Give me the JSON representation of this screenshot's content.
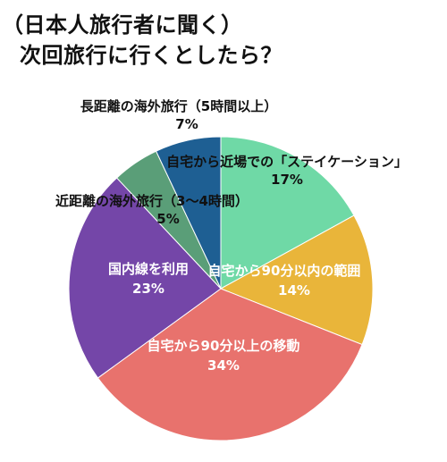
{
  "title_lines": [
    "（日本人旅行者に聞く）",
    "次回旅行に行くとしたら？"
  ],
  "chart_data": {
    "type": "pie",
    "start_angle_deg": 0,
    "direction": "clockwise",
    "slices": [
      {
        "label": "自宅から近場での「ステイケーション」",
        "value": 17,
        "value_label": "17%",
        "color": "#6fd9a6",
        "label_color": "#111111"
      },
      {
        "label": "自宅から90分以内の範囲",
        "value": 14,
        "value_label": "14%",
        "color": "#e9b53a",
        "label_color": "#ffffff"
      },
      {
        "label": "自宅から90分以上の移動",
        "value": 34,
        "value_label": "34%",
        "color": "#e8726d",
        "label_color": "#ffffff"
      },
      {
        "label": "国内線を利用",
        "value": 23,
        "value_label": "23%",
        "color": "#7446a8",
        "label_color": "#ffffff"
      },
      {
        "label": "近距離の海外旅行（3〜4時間）",
        "value": 5,
        "value_label": "5%",
        "color": "#5a9e78",
        "label_color": "#111111"
      },
      {
        "label": "長距離の海外旅行（5時間以上）",
        "value": 7,
        "value_label": "7%",
        "color": "#1e5f93",
        "label_color": "#111111"
      }
    ]
  }
}
